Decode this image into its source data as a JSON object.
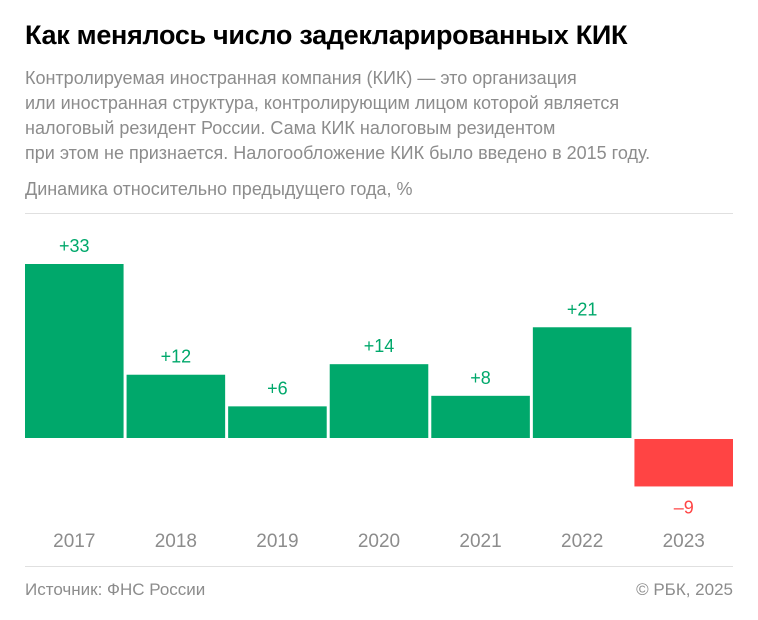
{
  "header": {
    "title": "Как менялось число задекларированных КИК",
    "subtitle_lines": [
      "Контролируемая иностранная компания (КИК) — это организация",
      "или иностранная структура, контролирующим лицом которой является",
      "налоговый резидент России. Сама КИК налоговым резидентом",
      "при этом не признается. Налогообложение КИК было введено в 2015 году."
    ]
  },
  "chart_data": {
    "type": "bar",
    "title": "Как менялось число задекларированных КИК",
    "ylabel": "Динамика относительно предыдущего года, %",
    "xlabel": "",
    "categories": [
      "2017",
      "2018",
      "2019",
      "2020",
      "2021",
      "2022",
      "2023"
    ],
    "values": [
      33,
      12,
      6,
      14,
      8,
      21,
      -9
    ],
    "labels": [
      "+33",
      "+12",
      "+6",
      "+14",
      "+8",
      "+21",
      "–9"
    ],
    "ylim": [
      -9,
      33
    ],
    "grid": false,
    "colors": {
      "positive": "#00a86b",
      "negative": "#ff4444"
    }
  },
  "footer": {
    "source": "Источник: ФНС России",
    "copyright": "© РБК, 2025"
  }
}
